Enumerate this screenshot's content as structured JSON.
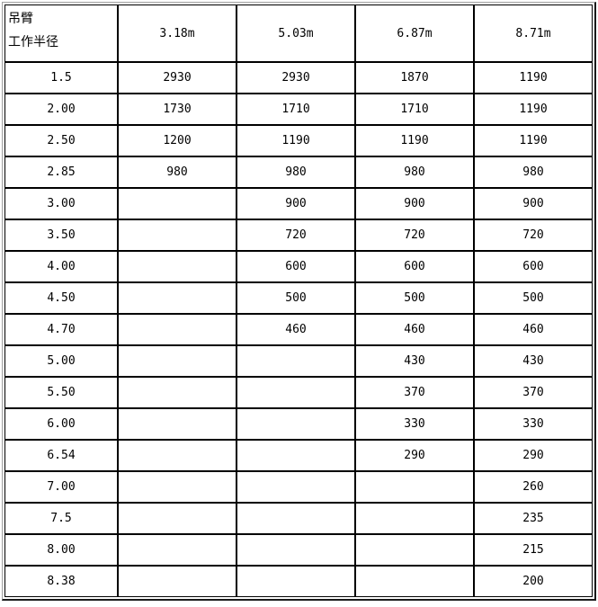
{
  "table": {
    "corner": {
      "line1": "吊臂",
      "line2": "工作半径"
    },
    "columns": [
      "3.18m",
      "5.03m",
      "6.87m",
      "8.71m"
    ],
    "rows": [
      {
        "radius": "1.5",
        "values": [
          "2930",
          "2930",
          "1870",
          "1190"
        ]
      },
      {
        "radius": "2.00",
        "values": [
          "1730",
          "1710",
          "1710",
          "1190"
        ]
      },
      {
        "radius": "2.50",
        "values": [
          "1200",
          "1190",
          "1190",
          "1190"
        ]
      },
      {
        "radius": "2.85",
        "values": [
          "980",
          "980",
          "980",
          "980"
        ]
      },
      {
        "radius": "3.00",
        "values": [
          "",
          "900",
          "900",
          "900"
        ]
      },
      {
        "radius": "3.50",
        "values": [
          "",
          "720",
          "720",
          "720"
        ]
      },
      {
        "radius": "4.00",
        "values": [
          "",
          "600",
          "600",
          "600"
        ]
      },
      {
        "radius": "4.50",
        "values": [
          "",
          "500",
          "500",
          "500"
        ]
      },
      {
        "radius": "4.70",
        "values": [
          "",
          "460",
          "460",
          "460"
        ]
      },
      {
        "radius": "5.00",
        "values": [
          "",
          "",
          "430",
          "430"
        ]
      },
      {
        "radius": "5.50",
        "values": [
          "",
          "",
          "370",
          "370"
        ]
      },
      {
        "radius": "6.00",
        "values": [
          "",
          "",
          "330",
          "330"
        ]
      },
      {
        "radius": "6.54",
        "values": [
          "",
          "",
          "290",
          "290"
        ]
      },
      {
        "radius": "7.00",
        "values": [
          "",
          "",
          "",
          "260"
        ]
      },
      {
        "radius": "7.5",
        "values": [
          "",
          "",
          "",
          "235"
        ]
      },
      {
        "radius": "8.00",
        "values": [
          "",
          "",
          "",
          "215"
        ]
      },
      {
        "radius": "8.38",
        "values": [
          "",
          "",
          "",
          "200"
        ]
      }
    ]
  },
  "colors": {
    "cell_border": "#000000",
    "outer_border_light": "#a0a0a0",
    "outer_border_dark": "#1a1a1a",
    "background": "#ffffff",
    "text": "#000000"
  }
}
